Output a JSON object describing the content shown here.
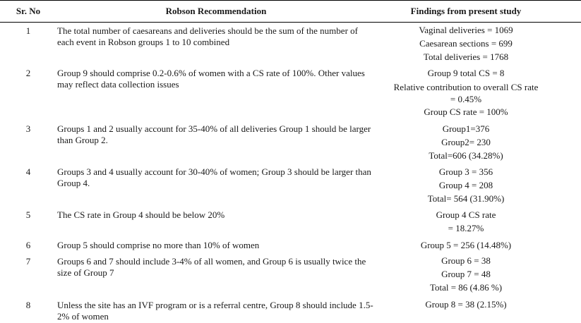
{
  "headers": {
    "sr": "Sr. No",
    "rec": "Robson Recommendation",
    "find": "Findings from present study"
  },
  "rows": [
    {
      "sr": "1",
      "rec": "The total number of caesareans and deliveries should be the sum of the number of each event in Robson groups 1 to 10 combined",
      "find": [
        "Vaginal deliveries = 1069",
        "Caesarean sections = 699",
        "Total deliveries = 1768"
      ]
    },
    {
      "sr": "2",
      "rec": "Group 9 should comprise 0.2-0.6% of women with a CS rate of 100%. Other values may reflect data collection issues",
      "find": [
        "Group 9 total CS = 8",
        "Relative contribution to overall CS rate",
        "= 0.45%",
        "Group CS rate  = 100%"
      ]
    },
    {
      "sr": "3",
      "rec": "Groups 1 and 2 usually account for 35-40% of all deliveries Group 1 should be larger than Group 2.",
      "find": [
        "Group1=376",
        "Group2=  230",
        "Total=606 (34.28%)"
      ]
    },
    {
      "sr": "4",
      "rec": "Groups 3 and 4 usually account for 30-40% of women; Group 3 should be larger than Group 4.",
      "find": [
        "Group 3 = 356",
        "Group 4 = 208",
        "Total= 564 (31.90%)"
      ]
    },
    {
      "sr": "5",
      "rec": "The CS rate in Group 4 should be below 20%",
      "find": [
        "Group 4 CS rate",
        "= 18.27%"
      ]
    },
    {
      "sr": "6",
      "rec": "Group 5 should comprise no more than 10% of women",
      "find": [
        "Group 5 = 256 (14.48%)"
      ]
    },
    {
      "sr": "7",
      "rec": "Groups 6 and 7 should include 3-4% of all women, and Group 6 is usually twice the size of Group 7",
      "find": [
        "Group 6 = 38",
        "Group 7 = 48",
        "Total = 86 (4.86 %)"
      ]
    },
    {
      "sr": "8",
      "rec": "Unless the site has an IVF program or is a referral centre, Group 8 should include 1.5-2% of women",
      "find": [
        "Group 8 = 38 (2.15%)"
      ]
    }
  ]
}
